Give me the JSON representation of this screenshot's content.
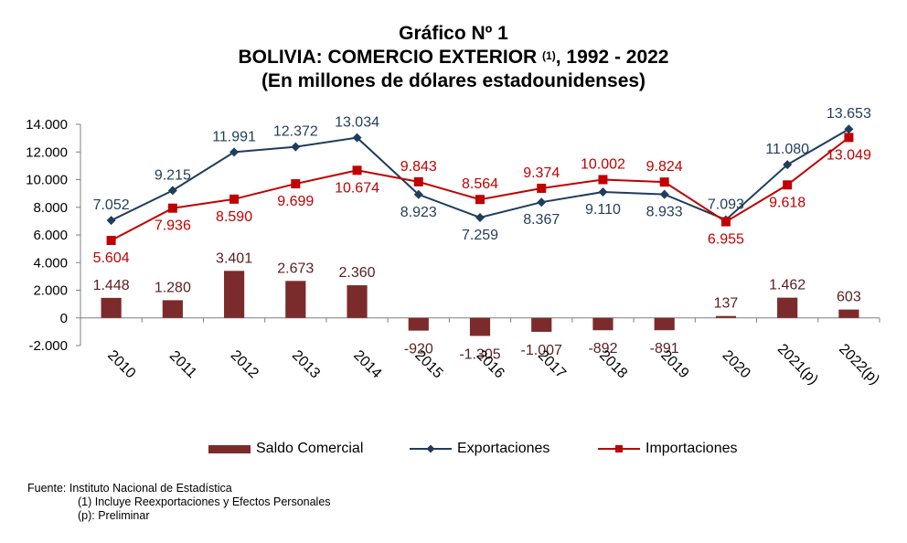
{
  "chart_data": {
    "type": "bar",
    "title": "Gráfico Nº 1",
    "subtitle_main": "BOLIVIA: COMERCIO EXTERIOR",
    "subtitle_sup": "(1)",
    "subtitle_years": ", 1992 - 2022",
    "units": "(En millones de dólares estadounidenses)",
    "categories": [
      "2010",
      "2011",
      "2012",
      "2013",
      "2014",
      "2015",
      "2016",
      "2017",
      "2018",
      "2019",
      "2020",
      "2021(p)",
      "2022(p)"
    ],
    "ylim": [
      -2000,
      14000
    ],
    "yticks": [
      -2000,
      0,
      2000,
      4000,
      6000,
      8000,
      10000,
      12000,
      14000
    ],
    "ytick_labels": [
      "-2.000",
      "0",
      "2.000",
      "4.000",
      "6.000",
      "8.000",
      "10.000",
      "12.000",
      "14.000"
    ],
    "series": [
      {
        "name": "Saldo Comercial",
        "type": "bar",
        "color": "#7b2b2b",
        "values": [
          1448,
          1280,
          3401,
          2673,
          2360,
          -920,
          -1305,
          -1007,
          -892,
          -891,
          137,
          1462,
          603
        ],
        "labels": [
          "1.448",
          "1.280",
          "3.401",
          "2.673",
          "2.360",
          "-920",
          "-1.305",
          "-1.007",
          "-892",
          "-891",
          "137",
          "1.462",
          "603"
        ]
      },
      {
        "name": "Exportaciones",
        "type": "line",
        "color": "#1f3d5c",
        "marker": "diamond",
        "values": [
          7052,
          9215,
          11991,
          12372,
          13034,
          8923,
          7259,
          8367,
          9110,
          8933,
          7093,
          11080,
          13653
        ],
        "labels": [
          "7.052",
          "9.215",
          "11.991",
          "12.372",
          "13.034",
          "8.923",
          "7.259",
          "8.367",
          "9.110",
          "8.933",
          "7.093",
          "11.080",
          "13.653"
        ]
      },
      {
        "name": "Importaciones",
        "type": "line",
        "color": "#c00000",
        "marker": "square",
        "values": [
          5604,
          7936,
          8590,
          9699,
          10674,
          9843,
          8564,
          9374,
          10002,
          9824,
          6955,
          9618,
          13049
        ],
        "labels": [
          "5.604",
          "7.936",
          "8.590",
          "9.699",
          "10.674",
          "9.843",
          "8.564",
          "9.374",
          "10.002",
          "9.824",
          "6.955",
          "9.618",
          "13.049"
        ]
      }
    ],
    "legend_position": "bottom",
    "grid": false
  },
  "notes": {
    "source": "Fuente: Instituto Nacional de Estadística",
    "note1": "(1) Incluye Reexportaciones y Efectos Personales",
    "note2": "(p): Preliminar"
  }
}
